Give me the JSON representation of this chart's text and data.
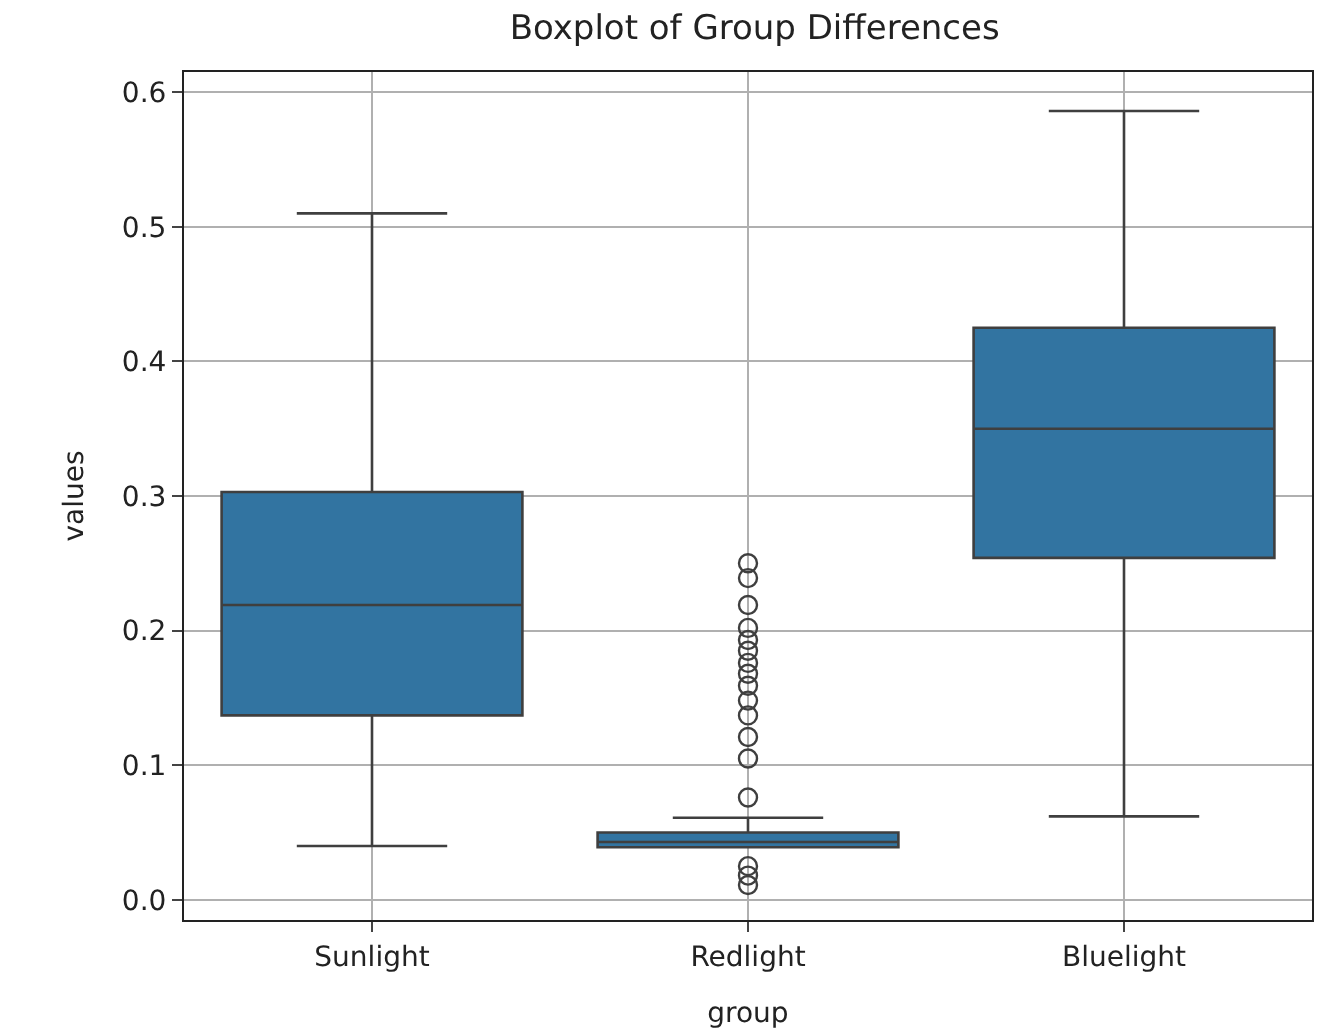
{
  "chart_data": {
    "type": "box",
    "title": "Boxplot of Group Differences",
    "xlabel": "group",
    "ylabel": "values",
    "categories": [
      "Sunlight",
      "Redlight",
      "Bluelight"
    ],
    "series": [
      {
        "color": "#3274a1",
        "boxes": [
          {
            "low": 0.04,
            "q1": 0.137,
            "median": 0.219,
            "q3": 0.303,
            "high": 0.51
          },
          {
            "low": 0.039,
            "q1": 0.039,
            "median": 0.043,
            "q3": 0.05,
            "high": 0.061,
            "outliers": [
              0.25,
              0.239,
              0.219,
              0.202,
              0.193,
              0.185,
              0.176,
              0.168,
              0.159,
              0.148,
              0.137,
              0.121,
              0.105,
              0.076,
              0.025,
              0.018,
              0.011
            ]
          },
          {
            "low": 0.062,
            "q1": 0.254,
            "median": 0.35,
            "q3": 0.425,
            "high": 0.586
          }
        ]
      }
    ],
    "ylim": [
      -0.015,
      0.615
    ],
    "yticks": [
      {
        "value": 0,
        "label": "0.0"
      },
      0.1,
      0.2,
      0.3,
      0.4,
      0.5,
      0.6
    ],
    "grid": true,
    "marker": "circle"
  }
}
